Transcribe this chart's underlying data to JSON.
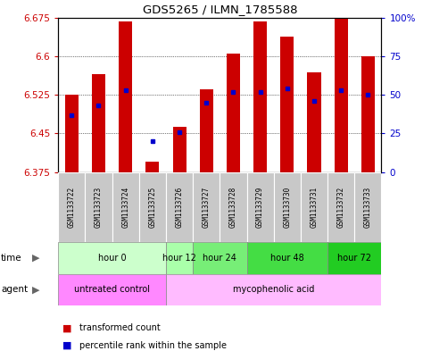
{
  "title": "GDS5265 / ILMN_1785588",
  "samples": [
    "GSM1133722",
    "GSM1133723",
    "GSM1133724",
    "GSM1133725",
    "GSM1133726",
    "GSM1133727",
    "GSM1133728",
    "GSM1133729",
    "GSM1133730",
    "GSM1133731",
    "GSM1133732",
    "GSM1133733"
  ],
  "transformed_count": [
    6.525,
    6.565,
    6.668,
    6.395,
    6.462,
    6.535,
    6.605,
    6.668,
    6.638,
    6.568,
    6.672,
    6.6
  ],
  "percentile_rank": [
    37,
    43,
    53,
    20,
    26,
    45,
    52,
    52,
    54,
    46,
    53,
    50
  ],
  "ylim": [
    6.375,
    6.675
  ],
  "yticks": [
    6.375,
    6.45,
    6.525,
    6.6,
    6.675
  ],
  "right_yticks": [
    0,
    25,
    50,
    75,
    100
  ],
  "bar_color": "#cc0000",
  "percentile_color": "#0000cc",
  "base_value": 6.375,
  "bar_width": 0.5,
  "time_groups": [
    {
      "label": "hour 0",
      "start": 0,
      "end": 4,
      "color": "#ccffcc"
    },
    {
      "label": "hour 12",
      "start": 4,
      "end": 5,
      "color": "#aaffaa"
    },
    {
      "label": "hour 24",
      "start": 5,
      "end": 7,
      "color": "#77ee77"
    },
    {
      "label": "hour 48",
      "start": 7,
      "end": 10,
      "color": "#44dd44"
    },
    {
      "label": "hour 72",
      "start": 10,
      "end": 12,
      "color": "#22cc22"
    }
  ],
  "agent_groups": [
    {
      "label": "untreated control",
      "start": 0,
      "end": 4,
      "color": "#ff88ff"
    },
    {
      "label": "mycophenolic acid",
      "start": 4,
      "end": 12,
      "color": "#ffbbff"
    }
  ],
  "legend_items": [
    {
      "label": "transformed count",
      "color": "#cc0000"
    },
    {
      "label": "percentile rank within the sample",
      "color": "#0000cc"
    }
  ],
  "sample_bg": "#c8c8c8",
  "plot_bg": "#ffffff"
}
